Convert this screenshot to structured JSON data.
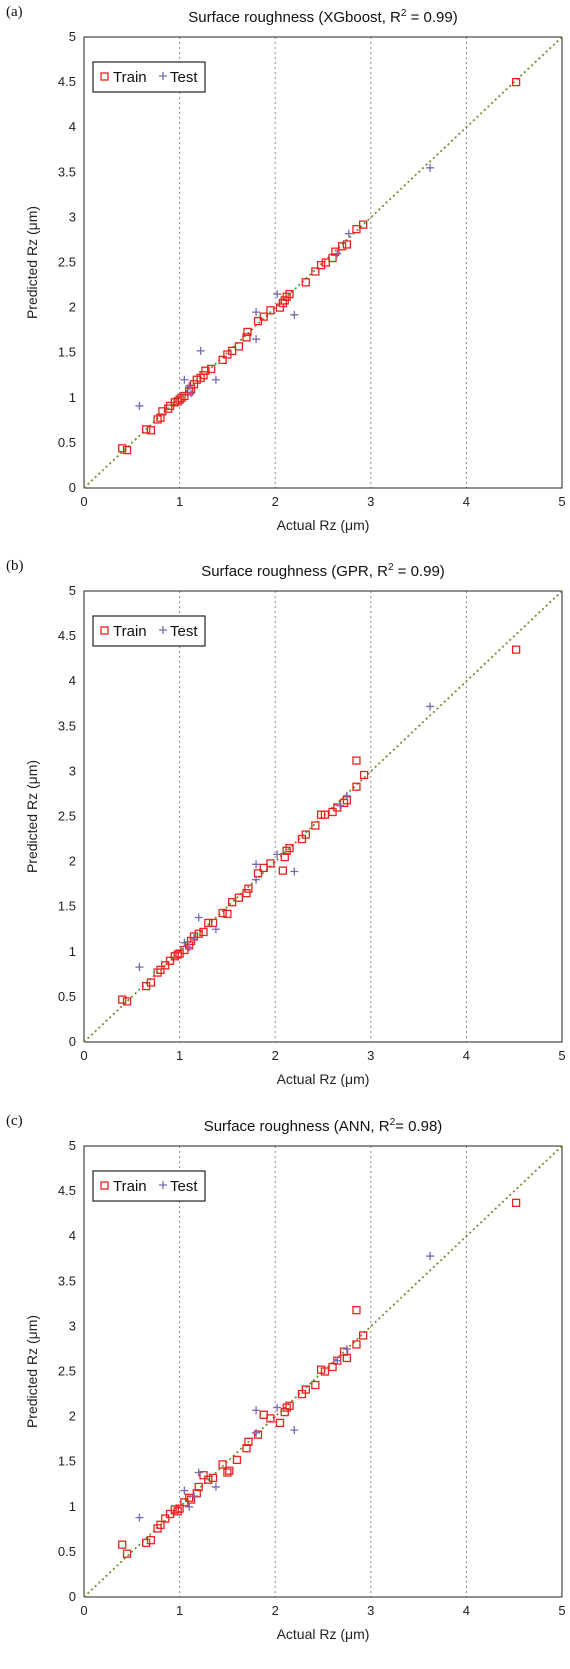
{
  "colors": {
    "train": "#e8231f",
    "test": "#7a68b2",
    "diagonal": "#6f8f2e",
    "grid": "#888888"
  },
  "charts": [
    {
      "panel": "(a)",
      "title_prefix": "Surface roughness (XGboost, R",
      "title_sup": "2",
      "title_suffix": " = 0.99)",
      "chart_data": {
        "type": "scatter",
        "xlabel": "Actual Rz (μm)",
        "ylabel": "Predicted Rz (μm)",
        "xlim": [
          0,
          5
        ],
        "ylim": [
          0,
          5
        ],
        "xticks": [
          "0",
          "1",
          "2",
          "3",
          "4",
          "5"
        ],
        "yticks": [
          "0",
          "0.5",
          "1",
          "1.5",
          "2",
          "2.5",
          "3",
          "3.5",
          "4",
          "4.5",
          "5"
        ],
        "grid": true,
        "legend_position": "top-left",
        "reference_line": "y = x",
        "series": [
          {
            "name": "Train",
            "marker": "square",
            "points": [
              [
                0.4,
                0.44
              ],
              [
                0.45,
                0.42
              ],
              [
                0.65,
                0.65
              ],
              [
                0.7,
                0.64
              ],
              [
                0.77,
                0.76
              ],
              [
                0.8,
                0.78
              ],
              [
                0.82,
                0.85
              ],
              [
                0.88,
                0.88
              ],
              [
                0.9,
                0.91
              ],
              [
                0.95,
                0.95
              ],
              [
                0.98,
                0.96
              ],
              [
                1.0,
                0.98
              ],
              [
                1.02,
                1.0
              ],
              [
                1.05,
                1.02
              ],
              [
                1.1,
                1.07
              ],
              [
                1.12,
                1.1
              ],
              [
                1.15,
                1.15
              ],
              [
                1.18,
                1.2
              ],
              [
                1.22,
                1.22
              ],
              [
                1.25,
                1.25
              ],
              [
                1.27,
                1.3
              ],
              [
                1.33,
                1.32
              ],
              [
                1.45,
                1.42
              ],
              [
                1.5,
                1.48
              ],
              [
                1.55,
                1.52
              ],
              [
                1.62,
                1.57
              ],
              [
                1.7,
                1.67
              ],
              [
                1.71,
                1.73
              ],
              [
                1.82,
                1.85
              ],
              [
                1.88,
                1.9
              ],
              [
                1.95,
                1.97
              ],
              [
                2.05,
                2.0
              ],
              [
                2.08,
                2.05
              ],
              [
                2.1,
                2.08
              ],
              [
                2.12,
                2.12
              ],
              [
                2.15,
                2.15
              ],
              [
                2.32,
                2.28
              ],
              [
                2.42,
                2.4
              ],
              [
                2.48,
                2.47
              ],
              [
                2.53,
                2.5
              ],
              [
                2.6,
                2.55
              ],
              [
                2.63,
                2.62
              ],
              [
                2.7,
                2.68
              ],
              [
                2.75,
                2.7
              ],
              [
                2.85,
                2.87
              ],
              [
                2.92,
                2.92
              ],
              [
                4.52,
                4.5
              ]
            ]
          },
          {
            "name": "Test",
            "marker": "plus",
            "points": [
              [
                0.58,
                0.91
              ],
              [
                1.05,
                1.2
              ],
              [
                1.1,
                1.13
              ],
              [
                1.12,
                1.05
              ],
              [
                1.22,
                1.52
              ],
              [
                1.38,
                1.2
              ],
              [
                1.8,
                1.95
              ],
              [
                1.8,
                1.65
              ],
              [
                2.02,
                2.15
              ],
              [
                2.2,
                1.92
              ],
              [
                2.65,
                2.6
              ],
              [
                2.77,
                2.82
              ],
              [
                3.62,
                3.55
              ]
            ]
          }
        ]
      }
    },
    {
      "panel": "(b)",
      "title_prefix": "Surface roughness (GPR, R",
      "title_sup": "2",
      "title_suffix": " = 0.99)",
      "chart_data": {
        "type": "scatter",
        "xlabel": "Actual Rz (μm)",
        "ylabel": "Predicted Rz (μm)",
        "xlim": [
          0,
          5
        ],
        "ylim": [
          0,
          5
        ],
        "xticks": [
          "0",
          "1",
          "2",
          "3",
          "4",
          "5"
        ],
        "yticks": [
          "0",
          "0.5",
          "1",
          "1.5",
          "2",
          "2.5",
          "3",
          "3.5",
          "4",
          "4.5",
          "5"
        ],
        "grid": true,
        "legend_position": "top-left",
        "reference_line": "y = x",
        "series": [
          {
            "name": "Train",
            "marker": "square",
            "points": [
              [
                0.4,
                0.47
              ],
              [
                0.45,
                0.45
              ],
              [
                0.65,
                0.62
              ],
              [
                0.7,
                0.66
              ],
              [
                0.77,
                0.77
              ],
              [
                0.8,
                0.8
              ],
              [
                0.85,
                0.85
              ],
              [
                0.9,
                0.9
              ],
              [
                0.95,
                0.95
              ],
              [
                0.98,
                0.97
              ],
              [
                1.0,
                0.98
              ],
              [
                1.05,
                1.02
              ],
              [
                1.1,
                1.07
              ],
              [
                1.12,
                1.12
              ],
              [
                1.15,
                1.17
              ],
              [
                1.2,
                1.2
              ],
              [
                1.25,
                1.22
              ],
              [
                1.3,
                1.32
              ],
              [
                1.35,
                1.32
              ],
              [
                1.45,
                1.43
              ],
              [
                1.5,
                1.42
              ],
              [
                1.55,
                1.55
              ],
              [
                1.62,
                1.6
              ],
              [
                1.7,
                1.65
              ],
              [
                1.72,
                1.7
              ],
              [
                1.82,
                1.87
              ],
              [
                1.88,
                1.93
              ],
              [
                1.95,
                1.98
              ],
              [
                2.08,
                1.9
              ],
              [
                2.1,
                2.05
              ],
              [
                2.12,
                2.12
              ],
              [
                2.15,
                2.15
              ],
              [
                2.28,
                2.25
              ],
              [
                2.32,
                2.3
              ],
              [
                2.42,
                2.4
              ],
              [
                2.48,
                2.52
              ],
              [
                2.52,
                2.52
              ],
              [
                2.6,
                2.55
              ],
              [
                2.65,
                2.6
              ],
              [
                2.72,
                2.65
              ],
              [
                2.75,
                2.68
              ],
              [
                2.85,
                2.83
              ],
              [
                2.85,
                3.12
              ],
              [
                2.93,
                2.96
              ],
              [
                4.52,
                4.35
              ]
            ]
          },
          {
            "name": "Test",
            "marker": "plus",
            "points": [
              [
                0.58,
                0.83
              ],
              [
                1.05,
                1.1
              ],
              [
                1.1,
                1.05
              ],
              [
                1.15,
                1.15
              ],
              [
                1.2,
                1.38
              ],
              [
                1.38,
                1.25
              ],
              [
                1.8,
                1.97
              ],
              [
                1.8,
                1.8
              ],
              [
                2.02,
                2.08
              ],
              [
                2.2,
                1.89
              ],
              [
                2.68,
                2.62
              ],
              [
                2.75,
                2.73
              ],
              [
                3.62,
                3.72
              ]
            ]
          }
        ]
      }
    },
    {
      "panel": "(c)",
      "title_prefix": "Surface roughness (ANN, R",
      "title_sup": "2",
      "title_suffix": "= 0.98)",
      "chart_data": {
        "type": "scatter",
        "xlabel": "Actual Rz (μm)",
        "ylabel": "Predicted Rz (μm)",
        "xlim": [
          0,
          5
        ],
        "ylim": [
          0,
          5
        ],
        "xticks": [
          "0",
          "1",
          "2",
          "3",
          "4",
          "5"
        ],
        "yticks": [
          "0",
          "0.5",
          "1",
          "1.5",
          "2",
          "2.5",
          "3",
          "3.5",
          "4",
          "4.5",
          "5"
        ],
        "grid": true,
        "legend_position": "top-left",
        "reference_line": "y = x",
        "series": [
          {
            "name": "Train",
            "marker": "square",
            "points": [
              [
                0.4,
                0.58
              ],
              [
                0.45,
                0.48
              ],
              [
                0.65,
                0.6
              ],
              [
                0.7,
                0.63
              ],
              [
                0.77,
                0.76
              ],
              [
                0.8,
                0.8
              ],
              [
                0.85,
                0.87
              ],
              [
                0.9,
                0.92
              ],
              [
                0.95,
                0.97
              ],
              [
                0.98,
                0.95
              ],
              [
                1.0,
                0.98
              ],
              [
                1.05,
                1.05
              ],
              [
                1.1,
                1.1
              ],
              [
                1.12,
                1.08
              ],
              [
                1.18,
                1.15
              ],
              [
                1.2,
                1.22
              ],
              [
                1.25,
                1.35
              ],
              [
                1.3,
                1.3
              ],
              [
                1.35,
                1.32
              ],
              [
                1.45,
                1.47
              ],
              [
                1.5,
                1.38
              ],
              [
                1.52,
                1.4
              ],
              [
                1.6,
                1.52
              ],
              [
                1.7,
                1.65
              ],
              [
                1.72,
                1.72
              ],
              [
                1.82,
                1.8
              ],
              [
                1.88,
                2.02
              ],
              [
                1.95,
                1.98
              ],
              [
                2.05,
                1.93
              ],
              [
                2.1,
                2.05
              ],
              [
                2.12,
                2.1
              ],
              [
                2.15,
                2.12
              ],
              [
                2.28,
                2.25
              ],
              [
                2.32,
                2.3
              ],
              [
                2.42,
                2.35
              ],
              [
                2.48,
                2.52
              ],
              [
                2.52,
                2.5
              ],
              [
                2.6,
                2.55
              ],
              [
                2.65,
                2.62
              ],
              [
                2.72,
                2.72
              ],
              [
                2.75,
                2.65
              ],
              [
                2.85,
                2.8
              ],
              [
                2.85,
                3.18
              ],
              [
                2.92,
                2.9
              ],
              [
                4.52,
                4.37
              ]
            ]
          },
          {
            "name": "Test",
            "marker": "plus",
            "points": [
              [
                0.58,
                0.88
              ],
              [
                1.05,
                1.18
              ],
              [
                1.1,
                1.0
              ],
              [
                1.15,
                1.12
              ],
              [
                1.2,
                1.38
              ],
              [
                1.38,
                1.22
              ],
              [
                1.8,
                2.07
              ],
              [
                1.8,
                1.82
              ],
              [
                2.02,
                2.1
              ],
              [
                2.2,
                1.85
              ],
              [
                2.65,
                2.62
              ],
              [
                2.75,
                2.75
              ],
              [
                3.62,
                3.78
              ]
            ]
          }
        ]
      }
    }
  ]
}
